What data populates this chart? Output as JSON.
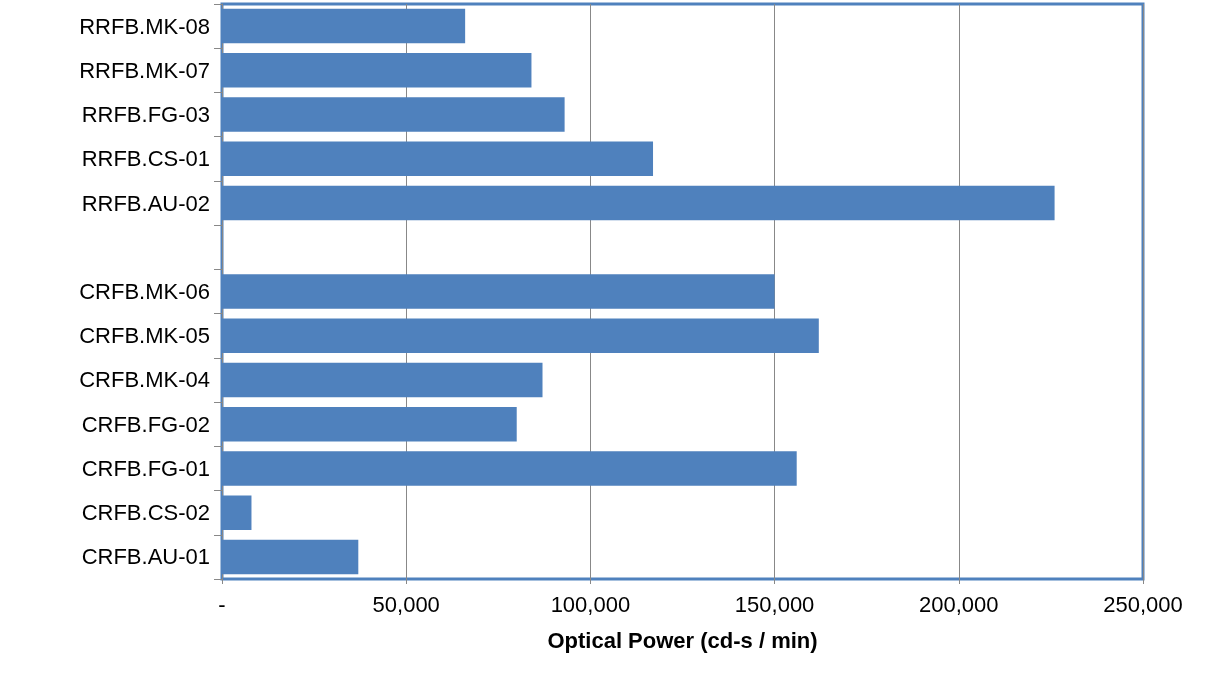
{
  "chart_data": {
    "type": "bar",
    "orientation": "horizontal",
    "xlabel": "Optical Power (cd-s / min)",
    "categories": [
      "RRFB.MK-08",
      "RRFB.MK-07",
      "RRFB.FG-03",
      "RRFB.CS-01",
      "RRFB.AU-02",
      null,
      "CRFB.MK-06",
      "CRFB.MK-05",
      "CRFB.MK-04",
      "CRFB.FG-02",
      "CRFB.FG-01",
      "CRFB.CS-02",
      "CRFB.AU-01"
    ],
    "values": [
      66000,
      84000,
      93000,
      117000,
      226000,
      null,
      150000,
      162000,
      87000,
      80000,
      156000,
      8000,
      37000
    ],
    "color": "#4f81bd",
    "xlim": [
      0,
      250000
    ],
    "xticks": [
      {
        "value": 0,
        "label": "-"
      },
      {
        "value": 50000,
        "label": "50,000"
      },
      {
        "value": 100000,
        "label": "100,000"
      },
      {
        "value": 150000,
        "label": "150,000"
      },
      {
        "value": 200000,
        "label": "200,000"
      },
      {
        "value": 250000,
        "label": "250,000"
      }
    ],
    "grid": "x"
  }
}
